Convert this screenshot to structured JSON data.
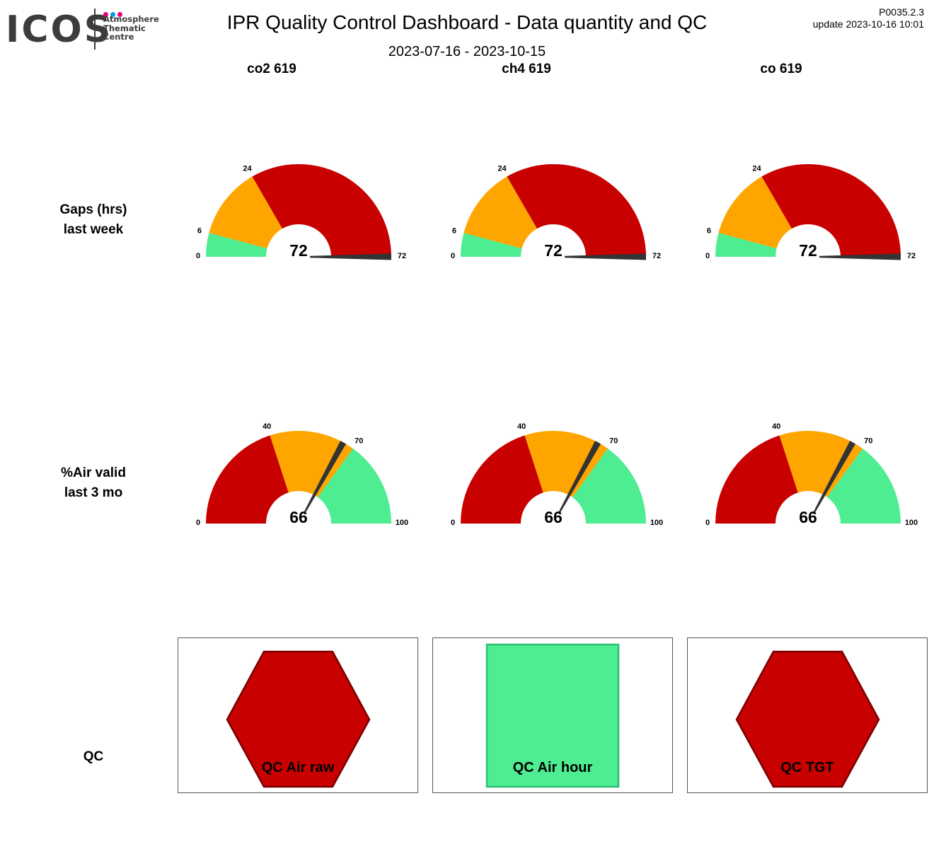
{
  "logo": {
    "wordmark": "ICOS",
    "lines": [
      "Atmosphere",
      "Thematic",
      "Centre"
    ],
    "dot_colors": [
      "#e6007e",
      "#00a0e3",
      "#e6007e"
    ]
  },
  "header": {
    "title": "IPR  Quality Control Dashboard - Data quantity and QC",
    "date_range": "2023-07-16 - 2023-10-15",
    "version": "P0035.2.3",
    "update": "update  2023-10-16 10:01"
  },
  "columns": [
    "co2 619",
    "ch4 619",
    "co 619"
  ],
  "rows": {
    "gaps_label": [
      "Gaps (hrs)",
      "last week"
    ],
    "air_label": [
      "%Air valid",
      "last 3 mo"
    ],
    "qc_label": "QC"
  },
  "colors": {
    "green": "#4eed91",
    "orange": "#ffa500",
    "red": "#c80000",
    "needle": "#333333"
  },
  "chart_data": [
    {
      "type": "gauge",
      "series": "co2 619",
      "metric": "Gaps (hrs) last week",
      "range": [
        0,
        72
      ],
      "thresholds": [
        6,
        24
      ],
      "bands": [
        {
          "from": 0,
          "to": 6,
          "color": "green"
        },
        {
          "from": 6,
          "to": 24,
          "color": "orange"
        },
        {
          "from": 24,
          "to": 72,
          "color": "red"
        }
      ],
      "tick_labels": [
        "0",
        "6",
        "24",
        "72"
      ],
      "value": 72,
      "value_label": "72"
    },
    {
      "type": "gauge",
      "series": "ch4 619",
      "metric": "Gaps (hrs) last week",
      "range": [
        0,
        72
      ],
      "thresholds": [
        6,
        24
      ],
      "bands": [
        {
          "from": 0,
          "to": 6,
          "color": "green"
        },
        {
          "from": 6,
          "to": 24,
          "color": "orange"
        },
        {
          "from": 24,
          "to": 72,
          "color": "red"
        }
      ],
      "tick_labels": [
        "0",
        "6",
        "24",
        "72"
      ],
      "value": 72,
      "value_label": "72"
    },
    {
      "type": "gauge",
      "series": "co 619",
      "metric": "Gaps (hrs) last week",
      "range": [
        0,
        72
      ],
      "thresholds": [
        6,
        24
      ],
      "bands": [
        {
          "from": 0,
          "to": 6,
          "color": "green"
        },
        {
          "from": 6,
          "to": 24,
          "color": "orange"
        },
        {
          "from": 24,
          "to": 72,
          "color": "red"
        }
      ],
      "tick_labels": [
        "0",
        "6",
        "24",
        "72"
      ],
      "value": 72,
      "value_label": "72"
    },
    {
      "type": "gauge",
      "series": "co2 619",
      "metric": "%Air valid last 3 mo",
      "range": [
        0,
        100
      ],
      "thresholds": [
        40,
        70
      ],
      "bands": [
        {
          "from": 0,
          "to": 40,
          "color": "red"
        },
        {
          "from": 40,
          "to": 70,
          "color": "orange"
        },
        {
          "from": 70,
          "to": 100,
          "color": "green"
        }
      ],
      "tick_labels": [
        "0",
        "40",
        "70",
        "100"
      ],
      "value": 66,
      "value_label": "66"
    },
    {
      "type": "gauge",
      "series": "ch4 619",
      "metric": "%Air valid last 3 mo",
      "range": [
        0,
        100
      ],
      "thresholds": [
        40,
        70
      ],
      "bands": [
        {
          "from": 0,
          "to": 40,
          "color": "red"
        },
        {
          "from": 40,
          "to": 70,
          "color": "orange"
        },
        {
          "from": 70,
          "to": 100,
          "color": "green"
        }
      ],
      "tick_labels": [
        "0",
        "40",
        "70",
        "100"
      ],
      "value": 66,
      "value_label": "66"
    },
    {
      "type": "gauge",
      "series": "co 619",
      "metric": "%Air valid last 3 mo",
      "range": [
        0,
        100
      ],
      "thresholds": [
        40,
        70
      ],
      "bands": [
        {
          "from": 0,
          "to": 40,
          "color": "red"
        },
        {
          "from": 40,
          "to": 70,
          "color": "orange"
        },
        {
          "from": 70,
          "to": 100,
          "color": "green"
        }
      ],
      "tick_labels": [
        "0",
        "40",
        "70",
        "100"
      ],
      "value": 66,
      "value_label": "66"
    }
  ],
  "qc_indicators": [
    {
      "label": "QC Air raw",
      "shape": "hexagon",
      "status_color": "red"
    },
    {
      "label": "QC Air hour",
      "shape": "square",
      "status_color": "green"
    },
    {
      "label": "QC TGT",
      "shape": "hexagon",
      "status_color": "red"
    }
  ]
}
